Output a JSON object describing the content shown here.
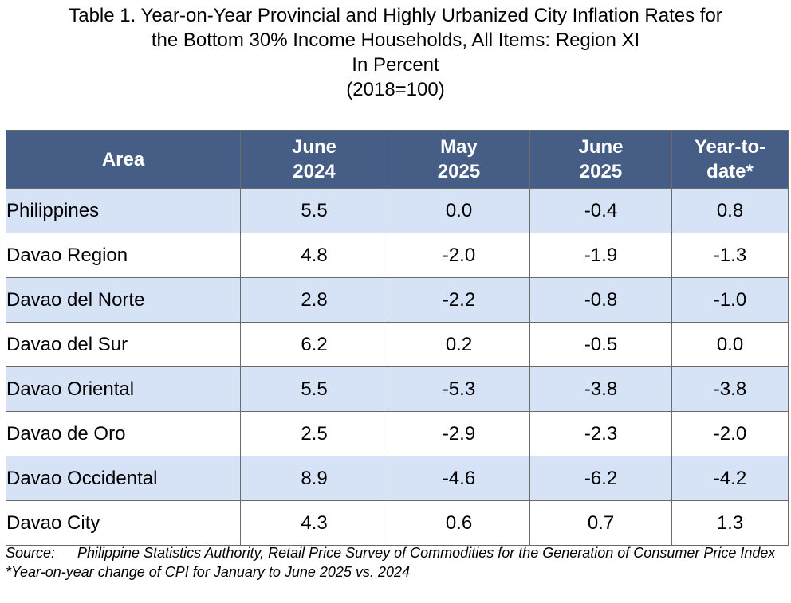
{
  "title": {
    "line1": "Table 1. Year-on-Year Provincial and Highly Urbanized City Inflation Rates for",
    "line2": "the Bottom 30% Income Households, All Items: Region XI",
    "line3": "In Percent",
    "line4": "(2018=100)"
  },
  "table": {
    "headers": [
      {
        "line1": "Area",
        "line2": ""
      },
      {
        "line1": "June",
        "line2": "2024"
      },
      {
        "line1": "May",
        "line2": "2025"
      },
      {
        "line1": "June",
        "line2": "2025"
      },
      {
        "line1": "Year-to-",
        "line2": "date*"
      }
    ],
    "rows": [
      {
        "area": "Philippines",
        "level": 0,
        "jun2024": "5.5",
        "may2025": "0.0",
        "jun2025": "-0.4",
        "ytd": "0.8"
      },
      {
        "area": "Davao Region",
        "level": 1,
        "jun2024": "4.8",
        "may2025": "-2.0",
        "jun2025": "-1.9",
        "ytd": "-1.3"
      },
      {
        "area": "Davao del Norte",
        "level": 2,
        "jun2024": "2.8",
        "may2025": "-2.2",
        "jun2025": "-0.8",
        "ytd": "-1.0"
      },
      {
        "area": "Davao del Sur",
        "level": 2,
        "jun2024": "6.2",
        "may2025": "0.2",
        "jun2025": "-0.5",
        "ytd": "0.0"
      },
      {
        "area": "Davao Oriental",
        "level": 2,
        "jun2024": "5.5",
        "may2025": "-5.3",
        "jun2025": "-3.8",
        "ytd": "-3.8"
      },
      {
        "area": "Davao de Oro",
        "level": 2,
        "jun2024": "2.5",
        "may2025": "-2.9",
        "jun2025": "-2.3",
        "ytd": "-2.0"
      },
      {
        "area": "Davao Occidental",
        "level": 2,
        "jun2024": "8.9",
        "may2025": "-4.6",
        "jun2025": "-6.2",
        "ytd": "-4.2"
      },
      {
        "area": "Davao City",
        "level": 2,
        "jun2024": "4.3",
        "may2025": "0.6",
        "jun2025": "0.7",
        "ytd": "1.3"
      }
    ]
  },
  "notes": {
    "source_label": "Source:",
    "source_text": "Philippine Statistics Authority, Retail Price Survey of Commodities for the Generation of Consumer Price Index",
    "footnote": "*Year-on-year change of CPI for January to June 2025 vs. 2024"
  },
  "colors": {
    "header_bg": "#465d86",
    "band_bg": "#d6e2f5",
    "border": "#6b6b6b"
  }
}
